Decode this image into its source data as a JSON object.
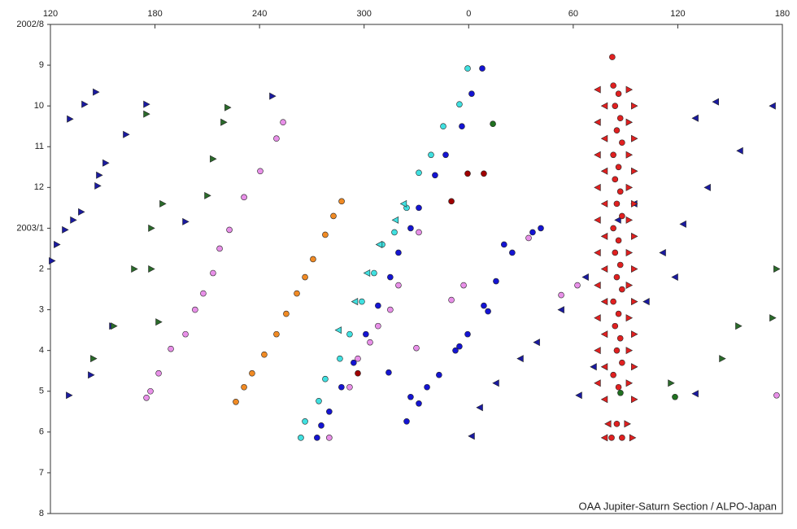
{
  "chart_data": {
    "type": "scatter",
    "credit": "OAA Jupiter-Saturn Section / ALPO-Japan",
    "xlim": [
      120,
      540
    ],
    "xticks": [
      120,
      180,
      240,
      300,
      {
        "value": 360,
        "label": "0"
      },
      {
        "value": 420,
        "label": "60"
      },
      {
        "value": 480,
        "label": "120"
      },
      {
        "value": 540,
        "label": "180"
      }
    ],
    "ylim": [
      0,
      12
    ],
    "y_inverted": true,
    "yticks": [
      {
        "value": 0,
        "label": "2002/8"
      },
      {
        "value": 1,
        "label": "9"
      },
      {
        "value": 2,
        "label": "10"
      },
      {
        "value": 3,
        "label": "11"
      },
      {
        "value": 4,
        "label": "12"
      },
      {
        "value": 5,
        "label": "2003/1"
      },
      {
        "value": 6,
        "label": "2"
      },
      {
        "value": 7,
        "label": "3"
      },
      {
        "value": 8,
        "label": "4"
      },
      {
        "value": 9,
        "label": "5"
      },
      {
        "value": 10,
        "label": "6"
      },
      {
        "value": 11,
        "label": "7"
      },
      {
        "value": 12,
        "label": "8"
      }
    ],
    "series": [
      {
        "color": "#1a1aa0",
        "marker": "triangle-right",
        "x": [
          146.1,
          139.6,
          131.2,
          148,
          137.7,
          133.1,
          128.4,
          123.7,
          120.9,
          175.1,
          163.4,
          151.7,
          147.1,
          143.3,
          155.5,
          130.7,
          247.4,
          197.5
        ],
        "y": [
          1.66,
          1.96,
          2.32,
          3.7,
          4.6,
          4.8,
          5.04,
          5.4,
          5.8,
          1.96,
          2.7,
          3.4,
          3.96,
          8.6,
          7.4,
          9.1,
          1.76,
          4.84
        ]
      },
      {
        "color": "#1a1aa0",
        "marker": "triangle-left",
        "x": [
          490.1,
          501.8,
          534.4,
          515.7,
          497.1,
          483.1,
          471.4,
          462,
          455,
          478.4,
          445.7,
          427.1,
          413.1,
          399.1,
          389.7,
          375.7,
          366.4,
          423.3,
          431.7,
          361.7,
          490.1
        ],
        "y": [
          2.3,
          1.9,
          2.0,
          3.1,
          4.0,
          4.9,
          5.6,
          6.8,
          4.4,
          6.2,
          4.8,
          6.2,
          7.0,
          7.8,
          8.2,
          8.8,
          9.4,
          9.1,
          8.4,
          10.1,
          9.06
        ]
      },
      {
        "color": "#2a6a2a",
        "marker": "triangle-right",
        "x": [
          175.1,
          177.9,
          177.9,
          182.1,
          184.4,
          221.7,
          219.4,
          213.3,
          210.1,
          156.4,
          144.7,
          168.1,
          536.7,
          534.4,
          505.5,
          514.8,
          476.1
        ],
        "y": [
          2.2,
          5.0,
          6.0,
          7.3,
          4.4,
          2.04,
          2.4,
          3.3,
          4.2,
          7.4,
          8.2,
          6.0,
          6.0,
          7.2,
          8.2,
          7.4,
          8.8
        ]
      },
      {
        "color": "#e890e8",
        "marker": "circle",
        "x": [
          253.5,
          249.7,
          240.4,
          231.1,
          222.7,
          217.1,
          213.3,
          207.7,
          203,
          197.5,
          189.1,
          182.1,
          177.4,
          175.1,
          319.7,
          315,
          308,
          303.4,
          296.4,
          291.7,
          280,
          330,
          357.1,
          350.1,
          331.4,
          394.4,
          413.1,
          422.4,
          536.7
        ],
        "y": [
          2.4,
          2.8,
          3.6,
          4.24,
          5.04,
          5.5,
          6.1,
          6.6,
          7.0,
          7.6,
          7.96,
          8.56,
          9.0,
          9.16,
          6.4,
          7.0,
          7.4,
          7.8,
          8.2,
          8.9,
          10.14,
          7.94,
          6.4,
          6.76,
          5.1,
          5.24,
          6.64,
          6.4,
          9.1
        ]
      },
      {
        "color": "#f08a24",
        "marker": "circle",
        "x": [
          287.1,
          282.4,
          277.7,
          270.7,
          266.1,
          261.4,
          255.3,
          249.7,
          242.7,
          235.7,
          231.1,
          226.4
        ],
        "y": [
          4.34,
          4.7,
          5.16,
          5.76,
          6.2,
          6.6,
          7.1,
          7.6,
          8.1,
          8.56,
          8.9,
          9.26
        ]
      },
      {
        "color": "#40e0e0",
        "marker": "circle",
        "x": [
          359.4,
          354.7,
          345.4,
          338.4,
          331.4,
          324.4,
          317.4,
          310.4,
          305.7,
          298.7,
          291.7,
          286.1,
          277.7,
          274,
          266.1,
          263.7
        ],
        "y": [
          1.08,
          1.96,
          2.5,
          3.2,
          3.64,
          4.5,
          5.1,
          5.4,
          6.1,
          6.8,
          7.6,
          8.2,
          8.7,
          9.24,
          9.74,
          10.14
        ]
      },
      {
        "color": "#40e0e0",
        "marker": "triangle-left",
        "x": [
          322.7,
          318,
          308.7,
          301.7,
          294.7,
          285.3
        ],
        "y": [
          4.4,
          4.8,
          5.4,
          6.1,
          6.8,
          7.5
        ]
      },
      {
        "color": "#1414d2",
        "marker": "circle",
        "x": [
          367.8,
          361.7,
          356.1,
          346.8,
          340.7,
          331.4,
          326.7,
          319.7,
          315,
          308,
          301,
          294,
          287,
          280,
          275.4,
          273,
          401.4,
          385,
          375.7,
          368.7,
          359.4,
          352.4,
          343,
          336.1,
          326.7,
          331.4,
          324.4,
          314.1,
          354.7,
          396.7,
          371.1,
          380.3
        ],
        "y": [
          1.08,
          1.7,
          2.5,
          3.2,
          3.7,
          4.5,
          5.0,
          5.6,
          6.2,
          6.9,
          7.6,
          8.3,
          8.9,
          9.5,
          9.84,
          10.14,
          5.0,
          5.6,
          6.3,
          6.9,
          7.6,
          8.0,
          8.6,
          8.9,
          9.14,
          9.3,
          9.74,
          8.54,
          7.9,
          5.1,
          7.04,
          5.4
        ]
      },
      {
        "color": "#a00000",
        "marker": "circle",
        "x": [
          350.1,
          359.4,
          368.7,
          296.4
        ],
        "y": [
          4.34,
          3.66,
          3.66,
          8.56
        ]
      },
      {
        "color": "#207020",
        "marker": "circle",
        "x": [
          373.9,
          447.1,
          478.4
        ],
        "y": [
          2.44,
          9.04,
          9.14
        ]
      },
      {
        "color": "#e02020",
        "marker": "triangle-left",
        "x": [
          434,
          438,
          434,
          438,
          434,
          438,
          434,
          438,
          434,
          438,
          434,
          438,
          434,
          438,
          434,
          438,
          434,
          438,
          434,
          438,
          440,
          438
        ],
        "y": [
          1.6,
          2.0,
          2.4,
          2.8,
          3.2,
          3.6,
          4.0,
          4.4,
          4.8,
          5.2,
          5.6,
          6.0,
          6.4,
          6.8,
          7.2,
          7.6,
          8.0,
          8.4,
          8.8,
          9.2,
          9.8,
          10.14
        ]
      },
      {
        "color": "#e02020",
        "marker": "triangle-right",
        "x": [
          452,
          455,
          452,
          455,
          452,
          455,
          452,
          455,
          452,
          455,
          452,
          455,
          452,
          455,
          452,
          455,
          452,
          455,
          452,
          455,
          451,
          454
        ],
        "y": [
          1.6,
          2.0,
          2.4,
          2.8,
          3.2,
          3.6,
          4.0,
          4.4,
          4.8,
          5.2,
          5.6,
          6.0,
          6.4,
          6.8,
          7.2,
          7.6,
          8.0,
          8.4,
          8.8,
          9.2,
          9.8,
          10.14
        ]
      },
      {
        "color": "#e02020",
        "marker": "circle",
        "x": [
          442.4,
          443,
          446,
          444,
          447,
          445,
          448,
          443,
          446,
          444,
          447,
          445,
          448,
          443,
          446,
          444,
          447,
          445,
          448,
          443,
          446,
          444,
          447,
          445,
          448,
          443,
          446,
          445,
          442,
          448
        ],
        "y": [
          0.8,
          1.5,
          1.7,
          2.0,
          2.3,
          2.6,
          2.9,
          3.2,
          3.5,
          3.8,
          4.1,
          4.4,
          4.7,
          5.0,
          5.3,
          5.6,
          5.9,
          6.2,
          6.5,
          6.8,
          7.1,
          7.4,
          7.7,
          8.0,
          8.3,
          8.6,
          8.9,
          9.8,
          10.14,
          10.14
        ]
      }
    ]
  }
}
